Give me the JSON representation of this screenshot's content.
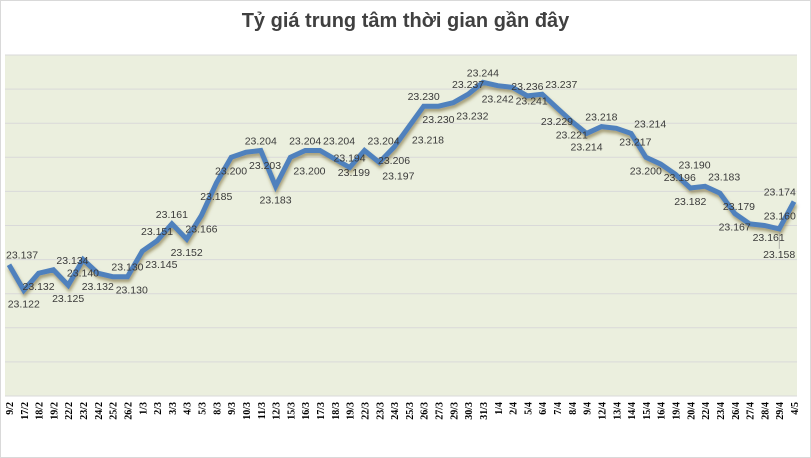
{
  "chart_data": {
    "type": "line",
    "title": "Tỷ giá trung tâm thời gian gần đây",
    "xlabel": "",
    "ylabel": "",
    "ylim": [
      23.06,
      23.26
    ],
    "y_grid_step": 0.02,
    "grid": true,
    "y_tick_labels_shown": false,
    "legend": "none",
    "colors": {
      "line": "#4F81BD",
      "plot_bg": "#EBEFDE",
      "grid": "#D9D9D9",
      "label": "#3A3A3A"
    },
    "categories": [
      "9/2",
      "17/2",
      "18/2",
      "19/2",
      "22/2",
      "23/2",
      "24/2",
      "25/2",
      "26/2",
      "1/3",
      "2/3",
      "3/3",
      "4/3",
      "5/3",
      "8/3",
      "9/3",
      "10/3",
      "11/3",
      "12/3",
      "15/3",
      "16/3",
      "17/3",
      "18/3",
      "19/3",
      "22/3",
      "23/3",
      "24/3",
      "25/3",
      "26/3",
      "27/3",
      "29/3",
      "30/3",
      "31/3",
      "1/4",
      "2/4",
      "5/4",
      "6/4",
      "7/4",
      "8/4",
      "9/4",
      "12/4",
      "13/4",
      "14/4",
      "15/4",
      "16/4",
      "19/4",
      "20/4",
      "22/4",
      "23/4",
      "26/4",
      "27/4",
      "28/4",
      "29/4",
      "4/5"
    ],
    "values": [
      23.137,
      23.122,
      23.132,
      23.134,
      23.125,
      23.14,
      23.132,
      23.13,
      23.13,
      23.145,
      23.151,
      23.161,
      23.152,
      23.166,
      23.185,
      23.2,
      23.203,
      23.204,
      23.183,
      23.2,
      23.204,
      23.204,
      23.199,
      23.194,
      23.204,
      23.197,
      23.206,
      23.218,
      23.23,
      23.23,
      23.232,
      23.237,
      23.244,
      23.242,
      23.241,
      23.236,
      23.237,
      23.229,
      23.221,
      23.214,
      23.218,
      23.217,
      23.214,
      23.2,
      23.196,
      23.19,
      23.182,
      23.183,
      23.179,
      23.167,
      23.161,
      23.16,
      23.158,
      23.174
    ],
    "value_labels": [
      "23.137",
      "23.122",
      "23.132",
      "23.134",
      "23.125",
      "23.140",
      "23.132",
      "23.130",
      "23.130",
      "23.145",
      "23.151",
      "23.161",
      "23.152",
      "23.166",
      "23.185",
      "23.200",
      "23.203",
      "23.204",
      "23.183",
      "23.200",
      "23.204",
      "23.204",
      "23.199",
      "23.194",
      "23.204",
      "23.197",
      "23.206",
      "23.218",
      "23.230",
      "23.230",
      "23.232",
      "23.237",
      "23.244",
      "23.242",
      "23.241",
      "23.236",
      "23.237",
      "23.229",
      "23.221",
      "23.214",
      "23.218",
      "23.217",
      "23.214",
      "23.200",
      "23.196",
      "23.190",
      "23.182",
      "23.183",
      "23.179",
      "23.167",
      "23.161",
      "23.160",
      "23.158",
      "23.174"
    ]
  }
}
